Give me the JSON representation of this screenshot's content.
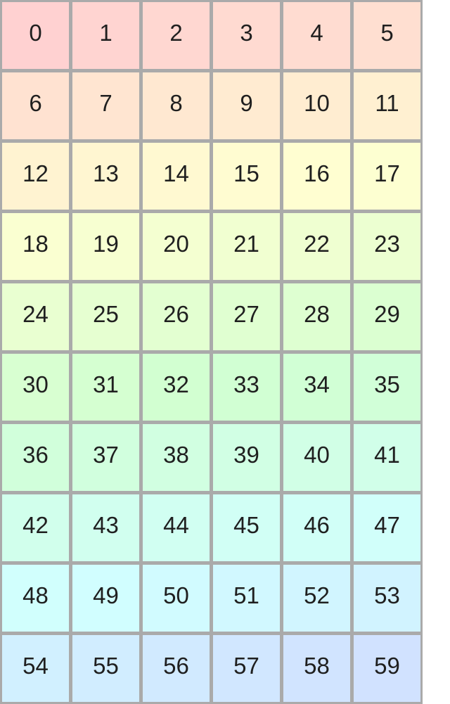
{
  "chart_data": {
    "type": "heatmap",
    "title": "",
    "rows": 10,
    "cols": 6,
    "cell_values": [
      0,
      1,
      2,
      3,
      4,
      5,
      6,
      7,
      8,
      9,
      10,
      11,
      12,
      13,
      14,
      15,
      16,
      17,
      18,
      19,
      20,
      21,
      22,
      23,
      24,
      25,
      26,
      27,
      28,
      29,
      30,
      31,
      32,
      33,
      34,
      35,
      36,
      37,
      38,
      39,
      40,
      41,
      42,
      43,
      44,
      45,
      46,
      47,
      48,
      49,
      50,
      51,
      52,
      53,
      54,
      55,
      56,
      57,
      58,
      59
    ],
    "cell_colors": [
      "#ffd1d1",
      "#ffd4d1",
      "#ffd7d1",
      "#ffdad1",
      "#ffdcd1",
      "#ffdfd1",
      "#ffe2d1",
      "#ffe5d1",
      "#ffe8d1",
      "#ffebd1",
      "#ffedd1",
      "#fff0d1",
      "#fff3d1",
      "#fff6d1",
      "#fff9d1",
      "#fffcd1",
      "#fffed1",
      "#fdffd1",
      "#faffd1",
      "#f7ffd1",
      "#f4ffd1",
      "#f1ffd1",
      "#efffd1",
      "#ecffd1",
      "#e9ffd1",
      "#e6ffd1",
      "#e3ffd1",
      "#e0ffd1",
      "#deffd1",
      "#dbffd1",
      "#d8ffd1",
      "#d5ffd1",
      "#d2ffd1",
      "#d1ffd3",
      "#d1ffd5",
      "#d1ffd8",
      "#d1ffdb",
      "#d1ffde",
      "#d1ffe1",
      "#d1ffe4",
      "#d1ffe6",
      "#d1ffe9",
      "#d1ffec",
      "#d1ffef",
      "#d1fff2",
      "#d1fff5",
      "#d1fff7",
      "#d1fffa",
      "#d1fffd",
      "#d1feff",
      "#d1fbff",
      "#d1f8ff",
      "#d1f5ff",
      "#d1f3ff",
      "#d1f0ff",
      "#d1edff",
      "#d1eaff",
      "#d1e7ff",
      "#d1e4ff",
      "#d1e2ff"
    ],
    "colormap": "rainbow hue sweep red-to-blue, ~3.7deg per cell, saturation 100%, lightness 91%",
    "legend": "none",
    "grid_line_color": "#aaaaaa"
  },
  "page": {
    "background": "#ffffff",
    "grid_border_color": "#aaaaaa",
    "cell_text_color": "#1f1f1f"
  }
}
